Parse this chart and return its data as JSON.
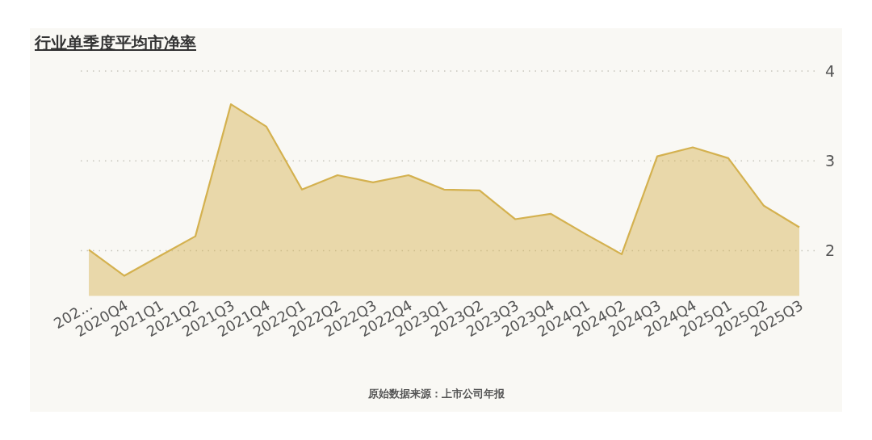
{
  "chart_data": {
    "type": "area",
    "title": "行业单季度平均市净率",
    "categories": [
      "202...",
      "2020Q4",
      "2021Q1",
      "2021Q2",
      "2021Q3",
      "2021Q4",
      "2022Q1",
      "2022Q2",
      "2022Q3",
      "2022Q4",
      "2023Q1",
      "2023Q2",
      "2023Q3",
      "2023Q4",
      "2024Q1",
      "2024Q2",
      "2024Q3",
      "2024Q4",
      "2025Q1",
      "2025Q2",
      "2025Q3"
    ],
    "values": [
      2.01,
      1.72,
      1.94,
      2.16,
      3.63,
      3.38,
      2.68,
      2.84,
      2.76,
      2.84,
      2.68,
      2.67,
      2.35,
      2.41,
      2.18,
      1.96,
      3.05,
      3.15,
      3.03,
      2.5,
      2.26
    ],
    "color": "#d4b14f",
    "ylim": [
      1.5,
      4
    ],
    "yticks": [
      2,
      3,
      4
    ],
    "grid": "y",
    "annotations": [
      "原始数据来源：上市公司年报"
    ]
  }
}
